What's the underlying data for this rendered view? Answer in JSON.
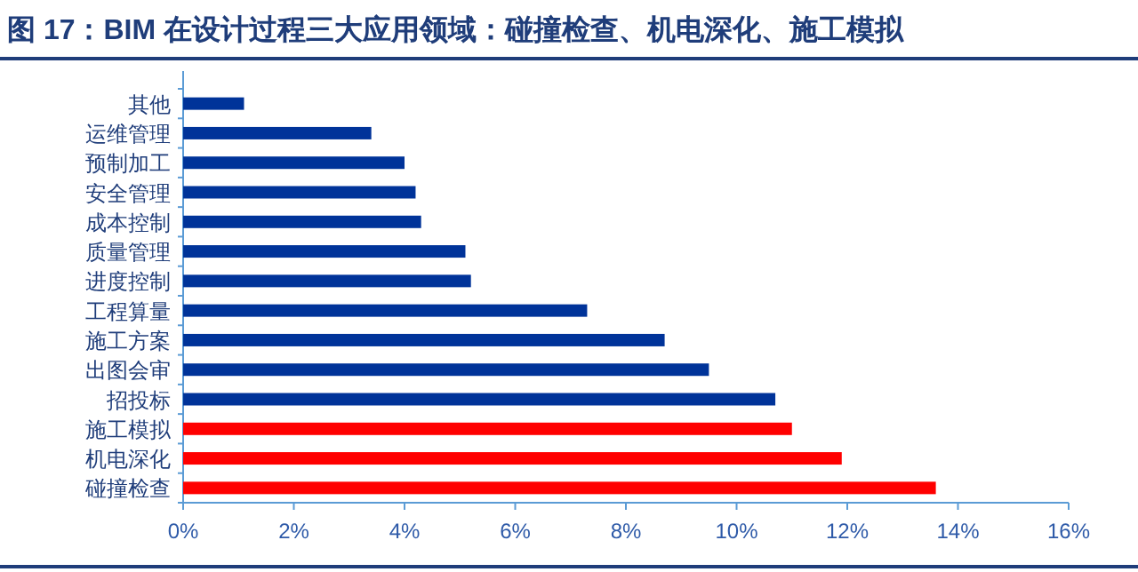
{
  "chart_data": {
    "type": "bar",
    "orientation": "horizontal",
    "title": "图 17：BIM 在设计过程三大应用领域：碰撞检查、机电深化、施工模拟",
    "categories": [
      "其他",
      "运维管理",
      "预制加工",
      "安全管理",
      "成本控制",
      "质量管理",
      "进度控制",
      "工程算量",
      "施工方案",
      "出图会审",
      "招投标",
      "施工模拟",
      "机电深化",
      "碰撞检查"
    ],
    "values": [
      1.1,
      3.4,
      4.0,
      4.2,
      4.3,
      5.1,
      5.2,
      7.3,
      8.7,
      9.5,
      10.7,
      11.0,
      11.9,
      13.6
    ],
    "colors": [
      "#003399",
      "#003399",
      "#003399",
      "#003399",
      "#003399",
      "#003399",
      "#003399",
      "#003399",
      "#003399",
      "#003399",
      "#003399",
      "#ff0000",
      "#ff0000",
      "#ff0000"
    ],
    "xlim": [
      0,
      16
    ],
    "xticks": [
      {
        "value": 0,
        "label": "0%"
      },
      {
        "value": 2,
        "label": "2%"
      },
      {
        "value": 4,
        "label": "4%"
      },
      {
        "value": 6,
        "label": "6%"
      },
      {
        "value": 8,
        "label": "8%"
      },
      {
        "value": 10,
        "label": "10%"
      },
      {
        "value": 12,
        "label": "12%"
      },
      {
        "value": 14,
        "label": "14%"
      },
      {
        "value": 16,
        "label": "16%"
      }
    ],
    "grid": false
  }
}
